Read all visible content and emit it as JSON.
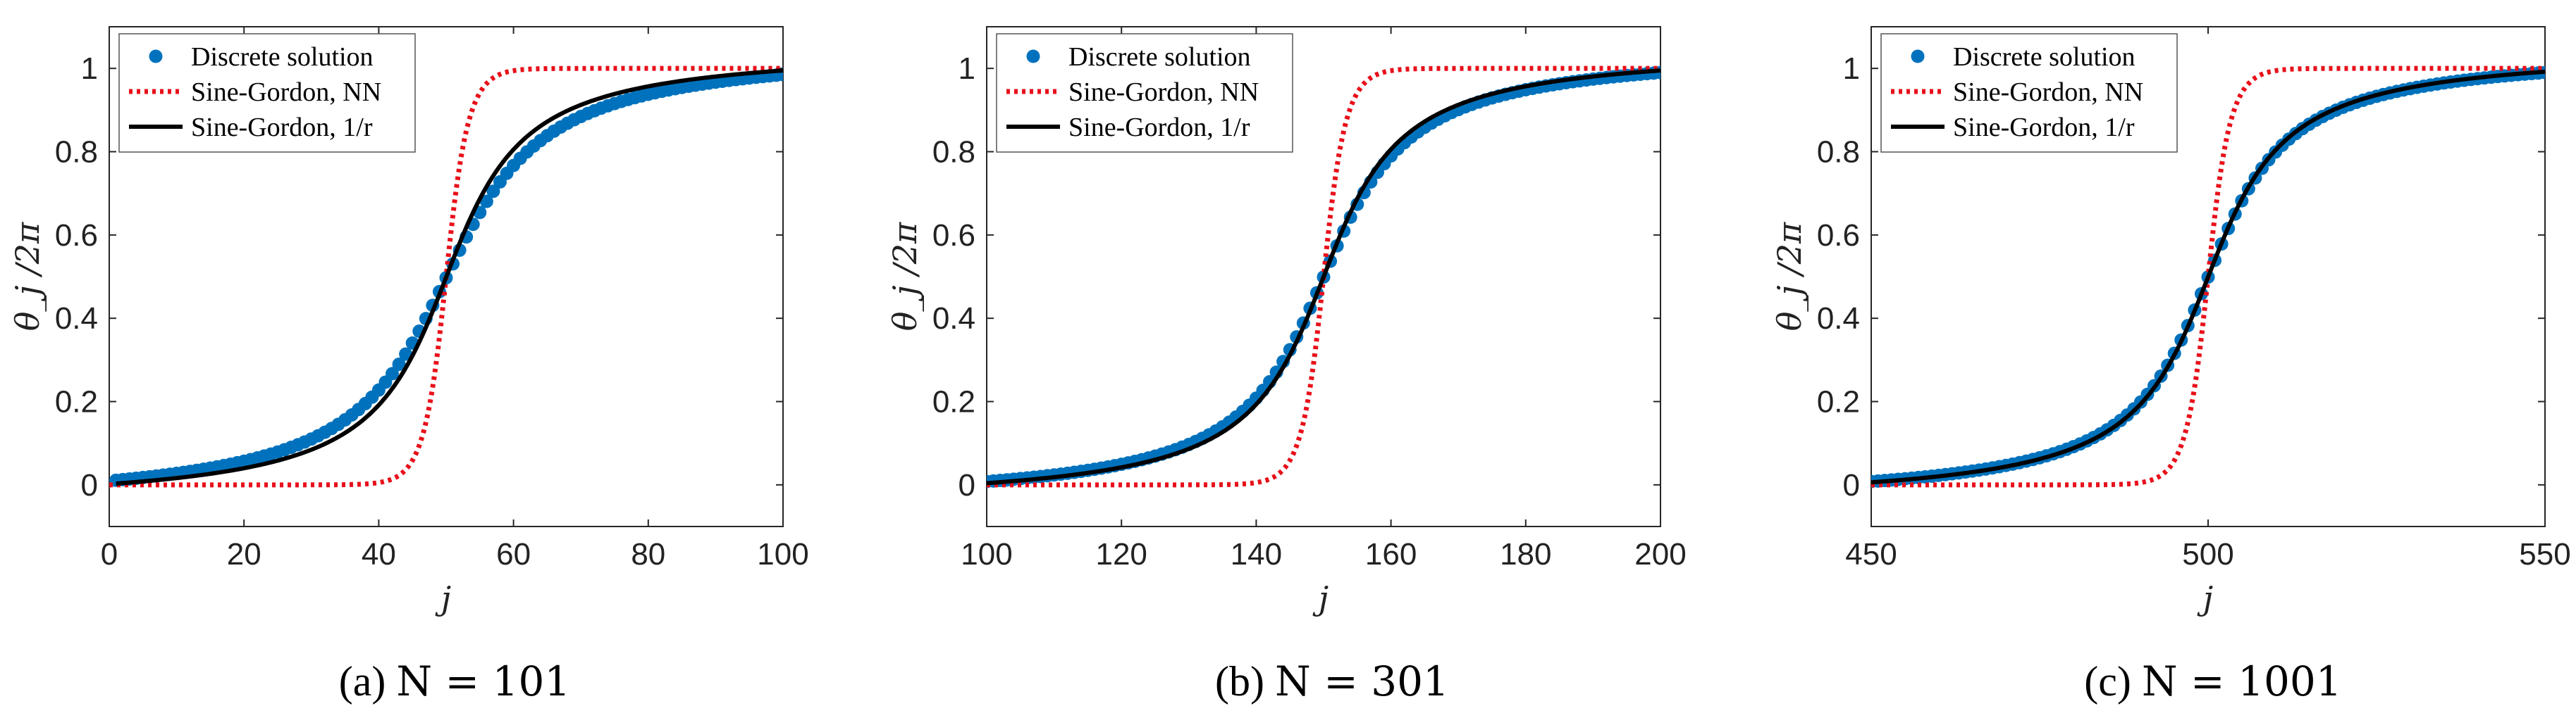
{
  "figure": {
    "colors": {
      "discrete": "#0072BD",
      "nn": "#E8101A",
      "r": "#000000",
      "axis": "#262626"
    }
  },
  "chart_data": [
    {
      "type": "line",
      "panel_id": "a",
      "caption_label": "(a)",
      "caption_math": "N = 101",
      "xlabel": "j",
      "ylabel": "θ_j /2π",
      "xlim": [
        0,
        100
      ],
      "ylim": [
        -0.1,
        1.1
      ],
      "xticks": [
        0,
        20,
        40,
        60,
        80,
        100
      ],
      "yticks": [
        0,
        0.2,
        0.4,
        0.6,
        0.8,
        1
      ],
      "legend": [
        "Discrete solution",
        "Sine-Gordon, NN",
        "Sine-Gordon, 1/r"
      ],
      "legend_position": "top-left",
      "center": 50,
      "series": [
        {
          "name": "Discrete solution",
          "style": "markers",
          "width_param": 10.7,
          "x_range": [
            1,
            100
          ],
          "baseline": 0.011,
          "ceiling": 0.985
        },
        {
          "name": "Sine-Gordon, NN",
          "style": "dotted",
          "width_param": 2.1,
          "x_range": [
            0,
            100
          ]
        },
        {
          "name": "Sine-Gordon, 1/r",
          "style": "solid",
          "width_param": 8.5,
          "x_range": [
            1,
            100
          ],
          "baseline": 0.003,
          "ceiling": 0.995
        }
      ]
    },
    {
      "type": "line",
      "panel_id": "b",
      "caption_label": "(b)",
      "caption_math": "N = 301",
      "xlabel": "j",
      "ylabel": "θ_j /2π",
      "xlim": [
        100,
        200
      ],
      "ylim": [
        -0.1,
        1.1
      ],
      "xticks": [
        100,
        120,
        140,
        160,
        180,
        200
      ],
      "yticks": [
        0,
        0.2,
        0.4,
        0.6,
        0.8,
        1
      ],
      "legend": [
        "Discrete solution",
        "Sine-Gordon, NN",
        "Sine-Gordon, 1/r"
      ],
      "legend_position": "top-left",
      "center": 150,
      "series": [
        {
          "name": "Discrete solution",
          "style": "markers",
          "width_param": 9.3,
          "x_range": [
            100,
            200
          ],
          "baseline": 0.008,
          "ceiling": 0.99
        },
        {
          "name": "Sine-Gordon, NN",
          "style": "dotted",
          "width_param": 2.1,
          "x_range": [
            100,
            200
          ]
        },
        {
          "name": "Sine-Gordon, 1/r",
          "style": "solid",
          "width_param": 8.5,
          "x_range": [
            100,
            200
          ],
          "baseline": 0.004,
          "ceiling": 0.995
        }
      ]
    },
    {
      "type": "line",
      "panel_id": "c",
      "caption_label": "(c)",
      "caption_math": "N = 1001",
      "xlabel": "j",
      "ylabel": "θ_j /2π",
      "xlim": [
        450,
        550
      ],
      "ylim": [
        -0.1,
        1.1
      ],
      "xticks": [
        450,
        500,
        550
      ],
      "yticks": [
        0,
        0.2,
        0.4,
        0.6,
        0.8,
        1
      ],
      "legend": [
        "Discrete solution",
        "Sine-Gordon, NN",
        "Sine-Gordon, 1/r"
      ],
      "legend_position": "top-left",
      "center": 500,
      "series": [
        {
          "name": "Discrete solution",
          "style": "markers",
          "width_param": 8.7,
          "x_range": [
            450,
            550
          ],
          "baseline": 0.008,
          "ceiling": 0.99
        },
        {
          "name": "Sine-Gordon, NN",
          "style": "dotted",
          "width_param": 2.1,
          "x_range": [
            450,
            550
          ]
        },
        {
          "name": "Sine-Gordon, 1/r",
          "style": "solid",
          "width_param": 8.5,
          "x_range": [
            450,
            550
          ],
          "baseline": 0.006,
          "ceiling": 0.992
        }
      ]
    }
  ]
}
